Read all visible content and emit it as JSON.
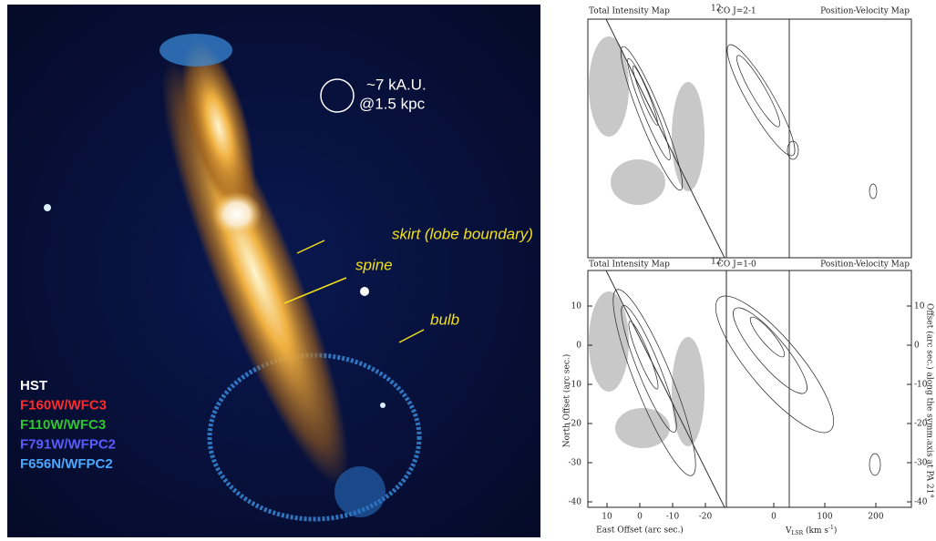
{
  "image": {
    "scale_label": [
      "~7 kA.U.",
      "@1.5 kpc"
    ],
    "annotations": [
      "skirt (lobe boundary)",
      "spine",
      "bulb"
    ],
    "legend": [
      {
        "label": "HST",
        "color": "#ffffff"
      },
      {
        "label": "F160W/WFC3",
        "color": "#ff2a2a"
      },
      {
        "label": "F110W/WFC3",
        "color": "#2fc42f"
      },
      {
        "label": "F791W/WFPC2",
        "color": "#5a5aff"
      },
      {
        "label": "F656N/WFPC2",
        "color": "#4aa8ff"
      }
    ]
  },
  "maps": {
    "rows": [
      {
        "left_title": "Total Intensity Map",
        "center_sup": "12",
        "center_title": "CO J=2-1",
        "right_title": "Position-Velocity Map"
      },
      {
        "left_title": "Total Intensity Map",
        "center_sup": "12",
        "center_title": "CO J=1-0",
        "right_title": "Position-Velocity Map"
      }
    ],
    "y_axis": {
      "label": "North Offset (arc sec.)",
      "ticks": [
        10,
        0,
        -10,
        -20,
        -30,
        -40
      ]
    },
    "y2_axis": {
      "label": "Offset (arc sec.) along the symm.axis at PA 21°",
      "ticks": [
        10,
        0,
        -10,
        -20,
        -30,
        -40
      ]
    },
    "x_axis": {
      "label": "East Offset (arc sec.)",
      "ticks": [
        10,
        0,
        -10,
        -20
      ]
    },
    "x2_axis": {
      "label_main": "V",
      "label_sub": "LSR",
      "label_rest": " (km s",
      "label_sup": "-1",
      "label_end": ")",
      "ticks": [
        0,
        100,
        200
      ]
    }
  }
}
